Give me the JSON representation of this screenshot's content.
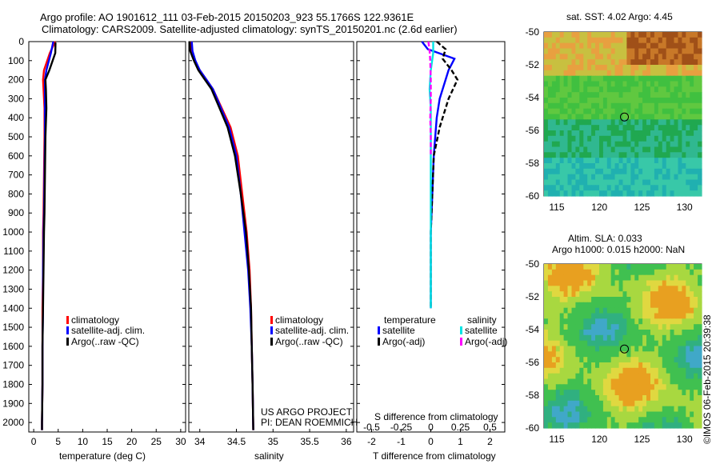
{
  "header": {
    "line1": "Argo profile: AO 1901612_111 03-Feb-2015 20150203_923 55.1766S 122.9361E",
    "line2": "Climatology: CARS2009. Satellite-adjusted climatology: synTS_20150201.nc (2.6d earlier)"
  },
  "credits": {
    "project": "US ARGO PROJECT",
    "pi": "PI: DEAN ROEMMICH",
    "imos": "©IMOS 06-Feb-2015 20:39:38"
  },
  "colors": {
    "climatology": "#ff0000",
    "satellite": "#0000ff",
    "argo": "#000000",
    "satellite_s": "#00e5e5",
    "argo_s": "#ff00ff"
  },
  "depth_ticks": [
    "0",
    "100",
    "200",
    "300",
    "400",
    "500",
    "600",
    "700",
    "800",
    "900",
    "1000",
    "1100",
    "1200",
    "1300",
    "1400",
    "1500",
    "1600",
    "1700",
    "1800",
    "1900",
    "2000"
  ],
  "panels": {
    "temp": {
      "xlabel": "temperature (deg C)",
      "ticks": [
        "0",
        "5",
        "10",
        "15",
        "20",
        "25",
        "30"
      ],
      "legend": [
        "climatology",
        "satellite-adj. clim.",
        "Argo(..raw -QC)"
      ]
    },
    "sal": {
      "xlabel": "salinity",
      "ticks": [
        "34",
        "34.5",
        "35",
        "35.5",
        "36"
      ],
      "legend": [
        "climatology",
        "satellite-adj. clim.",
        "Argo(..raw -QC)"
      ]
    },
    "diff": {
      "xlabel": "T difference from climatology",
      "top_label": "S difference from climatology",
      "t_ticks": [
        "-2",
        "-1",
        "0",
        "1",
        "2"
      ],
      "s_ticks": [
        "-0.5",
        "-0.25",
        "0",
        "0.25",
        "0.5"
      ],
      "legend_t_head": "temperature",
      "legend_s_head": "salinity",
      "legend_t": [
        "satellite",
        "Argo(-adj)"
      ],
      "legend_s": [
        "satellite",
        "Argo(-adj)"
      ]
    }
  },
  "maps": {
    "sst_title": "sat. SST: 4.02  Argo: 4.45",
    "sla_title1": "Altim. SLA: 0.033",
    "sla_title2": "Argo h1000: 0.015 h2000: NaN",
    "lat_ticks": [
      "-50",
      "-52",
      "-54",
      "-56",
      "-58",
      "-60"
    ],
    "lon_ticks": [
      "115",
      "120",
      "125",
      "130"
    ]
  },
  "chart_data": [
    {
      "type": "line",
      "title": "",
      "xlabel": "temperature (deg C)",
      "ylabel": "",
      "xlim": [
        -1,
        31
      ],
      "ylim": [
        2050,
        0
      ],
      "series": [
        {
          "name": "climatology",
          "x": [
            4.4,
            3.3,
            2.1,
            1.9,
            2.0,
            2.2,
            2.2,
            2.1,
            2.0,
            1.9,
            1.9,
            1.8,
            1.8,
            1.8,
            1.7,
            1.7
          ],
          "y": [
            0,
            60,
            150,
            200,
            250,
            350,
            500,
            700,
            900,
            1000,
            1200,
            1400,
            1600,
            1800,
            2000,
            2040
          ]
        },
        {
          "name": "satellite-adj. clim.",
          "x": [
            4.0,
            3.5,
            2.6,
            2.3,
            2.3,
            2.3,
            2.3,
            2.2,
            2.1,
            2.0,
            1.9,
            1.9,
            1.8,
            1.8,
            1.7,
            1.7
          ],
          "y": [
            0,
            60,
            150,
            200,
            250,
            350,
            500,
            700,
            900,
            1000,
            1200,
            1400,
            1600,
            1800,
            2000,
            2040
          ]
        },
        {
          "name": "Argo(..raw -QC)",
          "x": [
            4.45,
            4.4,
            3.2,
            2.4,
            2.5,
            2.6,
            2.4,
            2.3,
            2.2,
            2.1,
            2.0,
            1.9,
            1.8,
            1.8,
            1.7,
            1.7
          ],
          "y": [
            5,
            60,
            150,
            200,
            250,
            350,
            500,
            700,
            900,
            1000,
            1200,
            1400,
            1600,
            1800,
            2000,
            2040
          ]
        }
      ]
    },
    {
      "type": "line",
      "title": "",
      "xlabel": "salinity",
      "ylabel": "",
      "xlim": [
        33.85,
        36.1
      ],
      "ylim": [
        2050,
        0
      ],
      "series": [
        {
          "name": "climatology",
          "x": [
            33.87,
            33.88,
            33.93,
            34.0,
            34.09,
            34.18,
            34.3,
            34.42,
            34.52,
            34.58,
            34.64,
            34.68,
            34.7,
            34.71,
            34.72,
            34.73
          ],
          "y": [
            0,
            50,
            100,
            150,
            200,
            250,
            350,
            450,
            600,
            800,
            1000,
            1200,
            1400,
            1600,
            1800,
            2040
          ]
        },
        {
          "name": "satellite-adj. clim.",
          "x": [
            33.89,
            33.9,
            33.94,
            34.0,
            34.09,
            34.18,
            34.29,
            34.4,
            34.5,
            34.56,
            34.61,
            34.66,
            34.69,
            34.71,
            34.72,
            34.73
          ],
          "y": [
            0,
            50,
            100,
            150,
            200,
            250,
            350,
            450,
            600,
            800,
            1000,
            1200,
            1400,
            1600,
            1800,
            2040
          ]
        },
        {
          "name": "Argo(..raw -QC)",
          "x": [
            33.86,
            33.87,
            33.92,
            33.98,
            34.07,
            34.16,
            34.27,
            34.38,
            34.48,
            34.56,
            34.63,
            34.67,
            34.7,
            34.71,
            34.72,
            34.73
          ],
          "y": [
            0,
            50,
            100,
            150,
            200,
            250,
            350,
            450,
            600,
            800,
            1000,
            1200,
            1400,
            1600,
            1800,
            2040
          ]
        }
      ]
    },
    {
      "type": "line",
      "title": "",
      "xlabel": "T difference from climatology",
      "ylabel": "",
      "xlim": [
        -2.5,
        2.5
      ],
      "ylim": [
        2050,
        0
      ],
      "series": [
        {
          "name": "temperature satellite",
          "x": [
            -0.3,
            -0.1,
            0.8,
            0.6,
            0.5,
            0.3,
            0.2,
            0.1,
            0.05,
            0.0,
            0.0,
            0.0
          ],
          "y": [
            0,
            40,
            90,
            150,
            200,
            300,
            400,
            600,
            800,
            1000,
            1200,
            1400
          ]
        },
        {
          "name": "temperature Argo(-adj)",
          "x": [
            0.2,
            0.5,
            0.4,
            0.7,
            0.9,
            0.6,
            0.3,
            0.1,
            0.05,
            0.0,
            0.0,
            0.0
          ],
          "y": [
            0,
            40,
            90,
            150,
            200,
            300,
            450,
            600,
            800,
            1000,
            1200,
            1400
          ]
        },
        {
          "name": "salinity satellite",
          "x": [
            0.02,
            0.02,
            0.0,
            -0.01,
            0.0,
            0.0,
            0.0,
            0.0,
            0.0,
            0.0,
            0.0
          ],
          "y": [
            0,
            60,
            150,
            250,
            350,
            500,
            650,
            800,
            1000,
            1200,
            1400
          ]
        },
        {
          "name": "salinity Argo(-adj)",
          "x": [
            -0.02,
            -0.01,
            -0.005,
            0.0,
            0.0,
            -0.005,
            0.0,
            0.0
          ],
          "y": [
            0,
            50,
            100,
            200,
            300,
            400,
            500,
            600
          ]
        }
      ]
    }
  ]
}
